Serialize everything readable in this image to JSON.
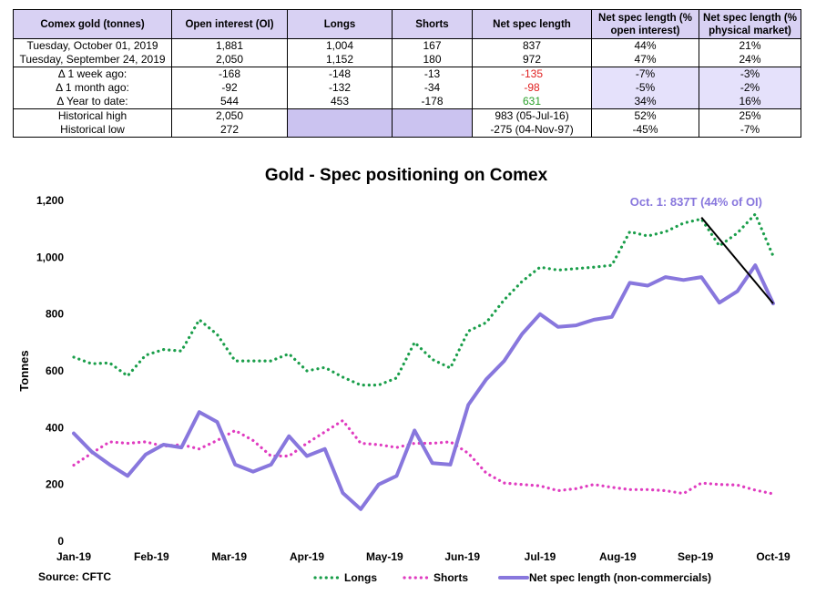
{
  "table": {
    "headers": [
      "Comex gold (tonnes)",
      "Open interest (OI)",
      "Longs",
      "Shorts",
      "Net spec length",
      "Net spec length (% open interest)",
      "Net spec length (% physical market)"
    ],
    "rows": [
      {
        "label": "Tuesday, October 01, 2019",
        "oi": "1,881",
        "longs": "1,004",
        "shorts": "167",
        "net": "837",
        "pct_oi": "44%",
        "pct_phys": "21%"
      },
      {
        "label": "Tuesday, September 24, 2019",
        "oi": "2,050",
        "longs": "1,152",
        "shorts": "180",
        "net": "972",
        "pct_oi": "47%",
        "pct_phys": "24%"
      },
      {
        "label": "Δ 1 week ago:",
        "oi": "-168",
        "longs": "-148",
        "shorts": "-13",
        "net": "-135",
        "pct_oi": "-7%",
        "pct_phys": "-3%"
      },
      {
        "label": "Δ 1 month ago:",
        "oi": "-92",
        "longs": "-132",
        "shorts": "-34",
        "net": "-98",
        "pct_oi": "-5%",
        "pct_phys": "-2%"
      },
      {
        "label": "Δ Year to date:",
        "oi": "544",
        "longs": "453",
        "shorts": "-178",
        "net": "631",
        "pct_oi": "34%",
        "pct_phys": "16%"
      },
      {
        "label": "Historical high",
        "oi": "2,050",
        "longs": "",
        "shorts": "",
        "net": "983  (05-Jul-16)",
        "pct_oi": "52%",
        "pct_phys": "25%"
      },
      {
        "label": "Historical low",
        "oi": "272",
        "longs": "",
        "shorts": "",
        "net": "-275  (04-Nov-97)",
        "pct_oi": "-45%",
        "pct_phys": "-7%"
      }
    ]
  },
  "chart_data": {
    "type": "line",
    "title": "Gold - Spec positioning on Comex",
    "ylabel": "Tonnes",
    "xlabel": "",
    "ylim": [
      0,
      1200
    ],
    "yticks": [
      "0",
      "200",
      "400",
      "600",
      "800",
      "1,000",
      "1,200"
    ],
    "xticks": [
      "Jan-19",
      "Feb-19",
      "Mar-19",
      "Apr-19",
      "May-19",
      "Jun-19",
      "Jul-19",
      "Aug-19",
      "Sep-19",
      "Oct-19"
    ],
    "x": [
      "2019-01-01",
      "2019-01-08",
      "2019-01-15",
      "2019-01-22",
      "2019-01-29",
      "2019-02-05",
      "2019-02-12",
      "2019-02-19",
      "2019-02-26",
      "2019-03-05",
      "2019-03-12",
      "2019-03-19",
      "2019-03-26",
      "2019-04-02",
      "2019-04-09",
      "2019-04-16",
      "2019-04-23",
      "2019-04-30",
      "2019-05-07",
      "2019-05-14",
      "2019-05-21",
      "2019-05-28",
      "2019-06-04",
      "2019-06-11",
      "2019-06-18",
      "2019-06-25",
      "2019-07-02",
      "2019-07-09",
      "2019-07-16",
      "2019-07-23",
      "2019-07-30",
      "2019-08-06",
      "2019-08-13",
      "2019-08-20",
      "2019-08-27",
      "2019-09-03",
      "2019-09-10",
      "2019-09-17",
      "2019-09-24",
      "2019-10-01"
    ],
    "series": [
      {
        "name": "Longs",
        "color": "#1a9e4a",
        "style": "dotted",
        "values": [
          648,
          625,
          628,
          582,
          655,
          675,
          670,
          780,
          728,
          635,
          635,
          635,
          660,
          600,
          612,
          578,
          550,
          550,
          575,
          700,
          640,
          610,
          740,
          770,
          850,
          915,
          965,
          955,
          960,
          965,
          972,
          1090,
          1075,
          1090,
          1120,
          1135,
          1040,
          1085,
          1152,
          1004
        ]
      },
      {
        "name": "Shorts",
        "color": "#e03cc0",
        "style": "dotted",
        "values": [
          268,
          310,
          350,
          345,
          350,
          335,
          340,
          325,
          355,
          390,
          355,
          300,
          300,
          345,
          385,
          425,
          345,
          340,
          330,
          345,
          345,
          350,
          310,
          240,
          205,
          200,
          195,
          178,
          185,
          200,
          190,
          182,
          182,
          178,
          168,
          205,
          200,
          198,
          180,
          167
        ]
      },
      {
        "name": "Net spec length (non-commercials)",
        "color": "#8877dd",
        "style": "solid",
        "values": [
          380,
          315,
          270,
          230,
          305,
          340,
          330,
          455,
          420,
          270,
          245,
          270,
          370,
          300,
          325,
          170,
          113,
          200,
          230,
          390,
          275,
          270,
          480,
          570,
          635,
          730,
          800,
          755,
          760,
          780,
          790,
          910,
          900,
          930,
          920,
          930,
          840,
          880,
          972,
          837
        ]
      }
    ],
    "annotation": {
      "text": "Oct. 1: 837T (44% of OI)",
      "color": "#8877dd",
      "trend_from": [
        "2019-09-03",
        1140
      ],
      "trend_to": [
        "2019-10-01",
        837
      ]
    },
    "legend": "bottom",
    "grid": false
  },
  "source": "Source: CFTC"
}
